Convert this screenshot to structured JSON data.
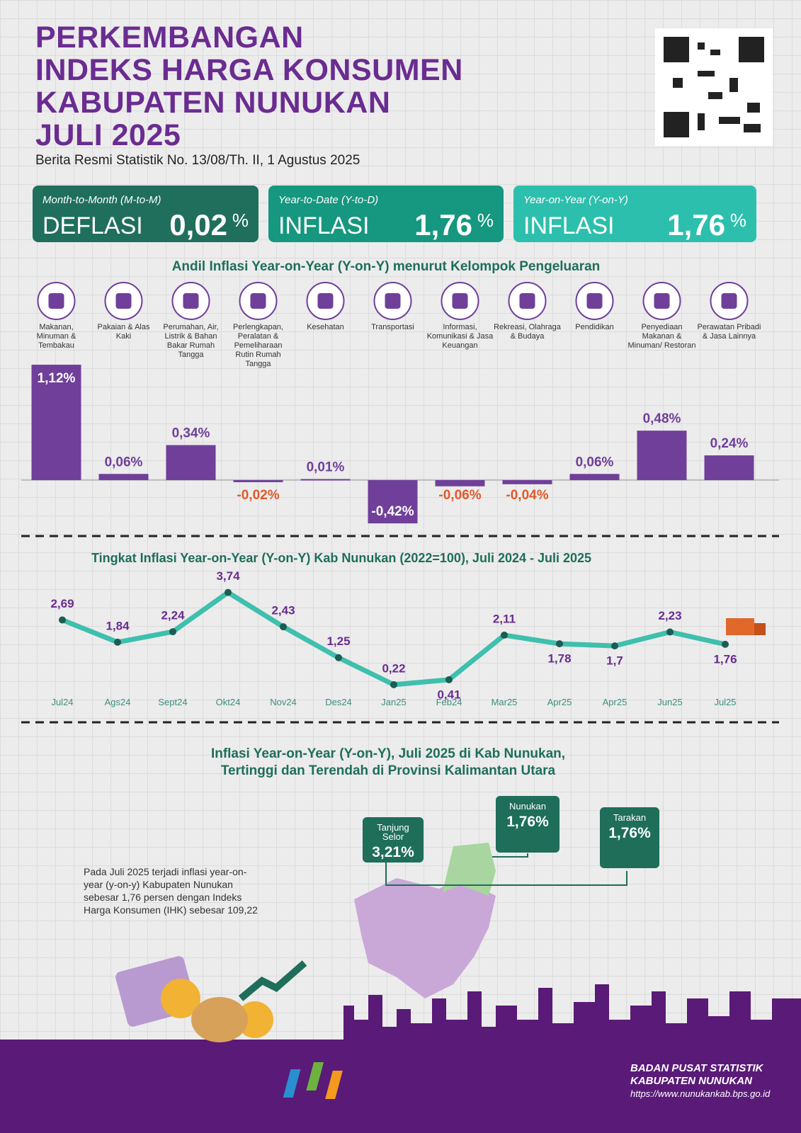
{
  "header": {
    "title_lines": [
      "PERKEMBANGAN",
      "INDEKS HARGA KONSUMEN",
      "KABUPATEN NUNUKAN",
      "JULI 2025"
    ],
    "subtitle": "Berita Resmi Statistik No. 13/08/Th. II, 1 Agustus 2025"
  },
  "cards": [
    {
      "period": "Month-to-Month (M-to-M)",
      "label": "DEFLASI",
      "value": "0,02",
      "unit": "%",
      "color": "#1f6f5c"
    },
    {
      "period": "Year-to-Date (Y-to-D)",
      "label": "INFLASI",
      "value": "1,76",
      "unit": "%",
      "color": "#16977f"
    },
    {
      "period": "Year-on-Year (Y-on-Y)",
      "label": "INFLASI",
      "value": "1,76",
      "unit": "%",
      "color": "#2dbfad"
    }
  ],
  "chart_data": [
    {
      "type": "bar",
      "title": "Andil Inflasi Year-on-Year (Y-on-Y) menurut Kelompok Pengeluaran",
      "categories": [
        "Makanan, Minuman & Tembakau",
        "Pakaian & Alas Kaki",
        "Perumahan, Air, Listrik & Bahan Bakar Rumah Tangga",
        "Perlengkapan, Peralatan & Pemeliharaan Rutin Rumah Tangga",
        "Kesehatan",
        "Transportasi",
        "Informasi, Komunikasi & Jasa Keuangan",
        "Rekreasi, Olahraga & Budaya",
        "Pendidikan",
        "Penyediaan Makanan & Minuman/ Restoran",
        "Perawatan Pribadi & Jasa Lainnya"
      ],
      "values": [
        1.12,
        0.06,
        0.34,
        -0.02,
        0.01,
        -0.42,
        -0.06,
        -0.04,
        0.06,
        0.48,
        0.24
      ],
      "value_labels": [
        "1,12%",
        "0,06%",
        "0,34%",
        "-0,02%",
        "0,01%",
        "-0,42%",
        "-0,06%",
        "-0,04%",
        "0,06%",
        "0,48%",
        "0,24%"
      ],
      "color": "#6f3f9a",
      "negative_label_color": "#e05a2b"
    },
    {
      "type": "line",
      "title": "Tingkat Inflasi Year-on-Year (Y-on-Y) Kab Nunukan (2022=100), Juli 2024 - Juli 2025",
      "categories": [
        "Jul24",
        "Ags24",
        "Sept24",
        "Okt24",
        "Nov24",
        "Des24",
        "Jan25",
        "Feb24",
        "Mar25",
        "Apr25",
        "Apr25",
        "Jun25",
        "Jul25"
      ],
      "values": [
        2.69,
        1.84,
        2.24,
        3.74,
        2.43,
        1.25,
        0.22,
        0.41,
        2.11,
        1.78,
        1.7,
        2.23,
        1.76
      ],
      "value_labels": [
        "2,69",
        "1,84",
        "2,24",
        "3,74",
        "2,43",
        "1,25",
        "0,22",
        "0,41",
        "2,11",
        "1,78",
        "1,7",
        "2,23",
        "1,76"
      ],
      "color": "#3fbfad",
      "point_color": "#1d5c52"
    }
  ],
  "map": {
    "title_lines": [
      "Inflasi Year-on-Year (Y-on-Y), Juli 2025 di Kab Nunukan,",
      "Tertinggi dan Terendah di Provinsi Kalimantan Utara"
    ],
    "callouts": [
      {
        "name": "Tanjung Selor",
        "value": "3,21%"
      },
      {
        "name": "Nunukan",
        "value": "1,76%"
      },
      {
        "name": "Tarakan",
        "value": "1,76%"
      }
    ],
    "note": "Pada Juli 2025 terjadi inflasi year-on-year (y-on-y) Kabupaten Nunukan sebesar 1,76 persen dengan Indeks Harga Konsumen (IHK) sebesar 109,22"
  },
  "footer": {
    "org": "BADAN PUSAT STATISTIK",
    "unit": "KABUPATEN NUNUKAN",
    "url": "https://www.nunukankab.bps.go.id"
  }
}
